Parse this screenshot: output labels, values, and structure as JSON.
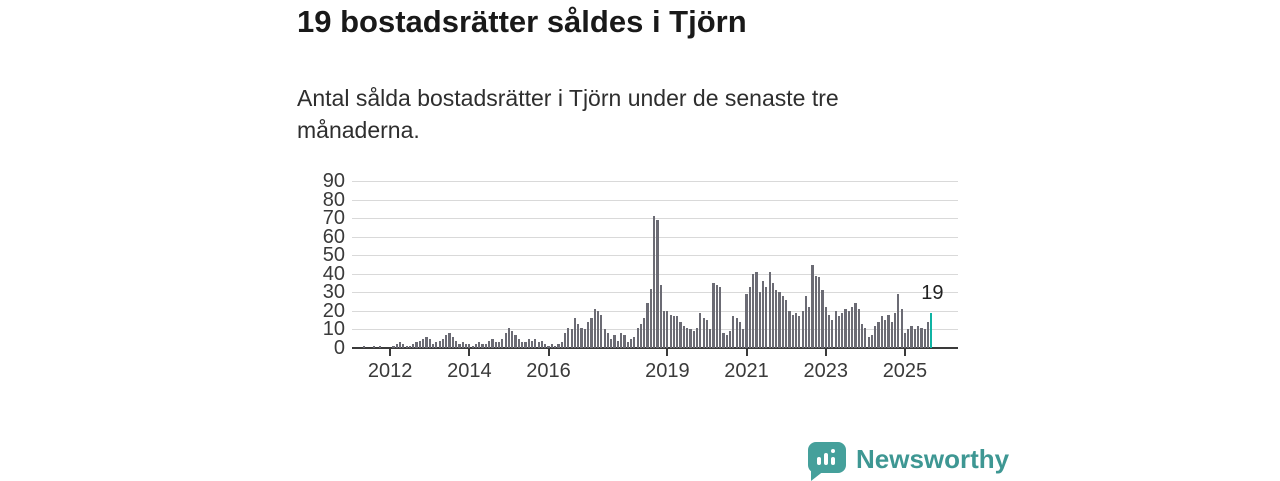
{
  "header": {
    "title": "19 bostadsrätter såldes i Tjörn",
    "subtitle": "Antal sålda bostadsrätter i Tjörn under de senaste tre månaderna."
  },
  "chart_data": {
    "type": "bar",
    "title": "19 bostadsrätter såldes i Tjörn",
    "xlabel": "",
    "ylabel": "",
    "ylim": [
      0,
      90
    ],
    "y_ticks": [
      0,
      10,
      20,
      30,
      40,
      50,
      60,
      70,
      80,
      90
    ],
    "x_tick_labels": [
      "2012",
      "2014",
      "2016",
      "2019",
      "2021",
      "2023",
      "2025"
    ],
    "frequency": "monthly",
    "x_start_year_approx": 2011.2,
    "grid": true,
    "legend_position": "none",
    "bar_color": "#6b6b74",
    "highlight_last": {
      "value": 19,
      "color": "#0fb3a3",
      "label": "19"
    },
    "values": [
      0,
      0,
      1,
      0,
      0,
      1,
      0,
      1,
      0,
      0,
      0,
      1,
      2,
      3,
      2,
      1,
      1,
      2,
      3,
      4,
      5,
      6,
      5,
      2,
      3,
      4,
      5,
      7,
      8,
      6,
      4,
      2,
      3,
      2,
      2,
      1,
      2,
      3,
      2,
      2,
      4,
      5,
      3,
      3,
      5,
      8,
      11,
      9,
      7,
      5,
      3,
      3,
      5,
      4,
      5,
      3,
      4,
      2,
      1,
      2,
      1,
      2,
      3,
      8,
      11,
      10,
      16,
      13,
      11,
      10,
      14,
      16,
      21,
      20,
      18,
      10,
      8,
      5,
      7,
      4,
      8,
      7,
      3,
      5,
      6,
      11,
      13,
      16,
      24,
      32,
      71,
      69,
      34,
      20,
      20,
      18,
      17,
      17,
      14,
      12,
      11,
      10,
      9,
      11,
      19,
      16,
      15,
      10,
      35,
      34,
      33,
      8,
      7,
      9,
      17,
      16,
      14,
      10,
      29,
      33,
      40,
      41,
      30,
      36,
      33,
      41,
      35,
      31,
      30,
      28,
      26,
      20,
      18,
      19,
      17,
      20,
      28,
      22,
      45,
      39,
      38,
      31,
      22,
      18,
      15,
      20,
      17,
      19,
      21,
      20,
      22,
      24,
      21,
      13,
      11,
      6,
      7,
      12,
      14,
      17,
      15,
      18,
      14,
      19,
      29,
      21,
      8,
      10,
      12,
      10,
      12,
      11,
      10,
      14,
      19
    ]
  },
  "branding": {
    "wordmark": "Newsworthy",
    "icon": "bar-chart-speech-bubble",
    "icon_color": "#45a09b",
    "text_color": "#3e9793"
  }
}
